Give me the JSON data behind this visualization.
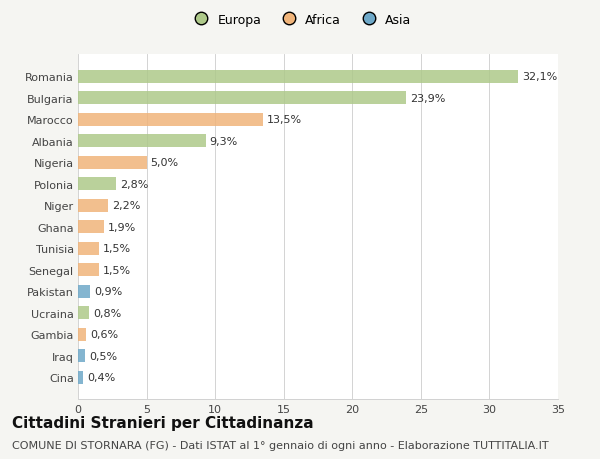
{
  "countries": [
    "Romania",
    "Bulgaria",
    "Marocco",
    "Albania",
    "Nigeria",
    "Polonia",
    "Niger",
    "Ghana",
    "Tunisia",
    "Senegal",
    "Pakistan",
    "Ucraina",
    "Gambia",
    "Iraq",
    "Cina"
  ],
  "values": [
    32.1,
    23.9,
    13.5,
    9.3,
    5.0,
    2.8,
    2.2,
    1.9,
    1.5,
    1.5,
    0.9,
    0.8,
    0.6,
    0.5,
    0.4
  ],
  "labels": [
    "32,1%",
    "23,9%",
    "13,5%",
    "9,3%",
    "5,0%",
    "2,8%",
    "2,2%",
    "1,9%",
    "1,5%",
    "1,5%",
    "0,9%",
    "0,8%",
    "0,6%",
    "0,5%",
    "0,4%"
  ],
  "continents": [
    "Europa",
    "Europa",
    "Africa",
    "Europa",
    "Africa",
    "Europa",
    "Africa",
    "Africa",
    "Africa",
    "Africa",
    "Asia",
    "Europa",
    "Africa",
    "Asia",
    "Asia"
  ],
  "colors": {
    "Europa": "#aec98a",
    "Africa": "#f0b47a",
    "Asia": "#6ea8c8"
  },
  "xlim": [
    0,
    35
  ],
  "xticks": [
    0,
    5,
    10,
    15,
    20,
    25,
    30,
    35
  ],
  "title": "Cittadini Stranieri per Cittadinanza",
  "subtitle": "COMUNE DI STORNARA (FG) - Dati ISTAT al 1° gennaio di ogni anno - Elaborazione TUTTITALIA.IT",
  "background_color": "#f5f5f2",
  "plot_background": "#ffffff",
  "title_fontsize": 11,
  "subtitle_fontsize": 8,
  "label_fontsize": 8,
  "tick_fontsize": 8,
  "legend_fontsize": 9
}
